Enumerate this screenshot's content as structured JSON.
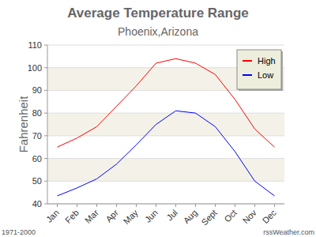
{
  "chart_data": {
    "type": "line",
    "title": "Average Temperature Range",
    "subtitle": "Phoenix,Arizona",
    "y_label": "Fahrenheit",
    "categories": [
      "Jan",
      "Feb",
      "Mar",
      "Apr",
      "May",
      "Jun",
      "Jul",
      "Aug",
      "Sept",
      "Oct",
      "Nov",
      "Dec"
    ],
    "series": [
      {
        "name": "High",
        "color": "#ff0000",
        "values": [
          65,
          69,
          74,
          83,
          92,
          102,
          104,
          102,
          97,
          86,
          73,
          65
        ]
      },
      {
        "name": "Low",
        "color": "#0000ff",
        "values": [
          43.5,
          47,
          51,
          57.5,
          66,
          75,
          81,
          80,
          74,
          63,
          50,
          43.5
        ]
      }
    ],
    "ylim": [
      40,
      110
    ],
    "yticks": [
      40,
      50,
      60,
      70,
      80,
      90,
      100,
      110
    ],
    "grid": true,
    "legend": "top-right",
    "annotations": [
      "1971-2000",
      "rssWeather.com"
    ]
  }
}
